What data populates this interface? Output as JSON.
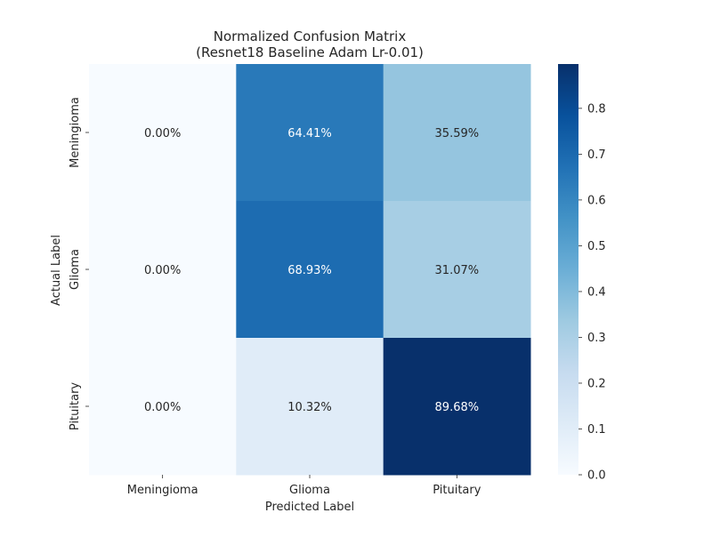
{
  "chart_data": {
    "type": "heatmap",
    "title_line1": "Normalized Confusion Matrix",
    "title_line2": "(Resnet18 Baseline Adam Lr-0.01)",
    "xlabel": "Predicted Label",
    "ylabel": "Actual Label",
    "x_categories": [
      "Meningioma",
      "Glioma",
      "Pituitary"
    ],
    "y_categories": [
      "Meningioma",
      "Glioma",
      "Pituitary"
    ],
    "values": [
      [
        0.0,
        0.6441,
        0.3559
      ],
      [
        0.0,
        0.6893,
        0.3107
      ],
      [
        0.0,
        0.1032,
        0.8968
      ]
    ],
    "annotations": [
      [
        "0.00%",
        "64.41%",
        "35.59%"
      ],
      [
        "0.00%",
        "68.93%",
        "31.07%"
      ],
      [
        "0.00%",
        "10.32%",
        "89.68%"
      ]
    ],
    "colormap": "Blues",
    "color_range": [
      0,
      0.8968
    ],
    "colorbar_ticks": [
      0.0,
      0.1,
      0.2,
      0.3,
      0.4,
      0.5,
      0.6,
      0.7,
      0.8
    ],
    "colorbar_tick_labels": [
      "0.0",
      "0.1",
      "0.2",
      "0.3",
      "0.4",
      "0.5",
      "0.6",
      "0.7",
      "0.8"
    ],
    "grid": false
  }
}
